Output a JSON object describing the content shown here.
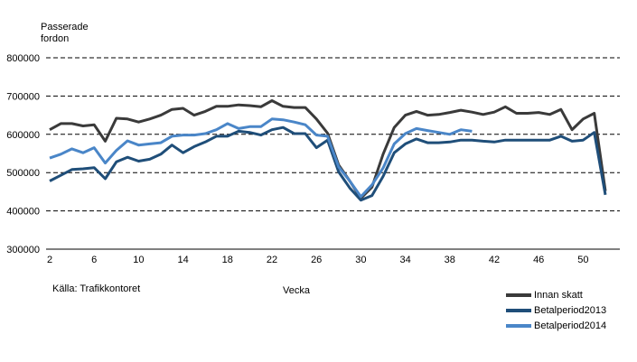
{
  "chart_data": {
    "type": "line",
    "ylabel_lines": [
      "Passerade",
      "fordon"
    ],
    "xlabel": "Vecka",
    "source": "Källa:  Trafikkontoret",
    "ylim": [
      300000,
      800000
    ],
    "yticks": [
      300000,
      400000,
      500000,
      600000,
      700000,
      800000
    ],
    "ytick_labels": [
      "300000",
      "400000",
      "500000",
      "600000",
      "700000",
      "800000"
    ],
    "xlim": [
      2,
      52
    ],
    "xticks": [
      2,
      6,
      10,
      14,
      18,
      22,
      26,
      30,
      34,
      38,
      42,
      46,
      50
    ],
    "xtick_labels": [
      "2",
      "6",
      "10",
      "14",
      "18",
      "22",
      "26",
      "30",
      "34",
      "38",
      "42",
      "46",
      "50"
    ],
    "grid": "horizontal-dashed",
    "legend_position": "bottom-right",
    "series": [
      {
        "name": "Innan skatt",
        "color": "#3a3a3a",
        "x": [
          2,
          3,
          4,
          5,
          6,
          7,
          8,
          9,
          10,
          11,
          12,
          13,
          14,
          15,
          16,
          17,
          18,
          19,
          20,
          21,
          22,
          23,
          24,
          25,
          26,
          27,
          28,
          29,
          30,
          31,
          32,
          33,
          34,
          35,
          36,
          37,
          38,
          39,
          40,
          41,
          42,
          43,
          44,
          45,
          46,
          47,
          48,
          49,
          50,
          51,
          52
        ],
        "values": [
          612000,
          628000,
          628000,
          622000,
          625000,
          582000,
          642000,
          640000,
          632000,
          640000,
          650000,
          665000,
          668000,
          650000,
          660000,
          673000,
          673000,
          677000,
          675000,
          672000,
          688000,
          673000,
          670000,
          670000,
          640000,
          603000,
          520000,
          478000,
          433000,
          462000,
          548000,
          618000,
          650000,
          660000,
          650000,
          652000,
          657000,
          663000,
          658000,
          652000,
          658000,
          672000,
          655000,
          655000,
          657000,
          652000,
          665000,
          612000,
          640000,
          655000,
          452000
        ]
      },
      {
        "name": "Betalperiod2013",
        "color": "#1f4e79",
        "x": [
          2,
          3,
          4,
          5,
          6,
          7,
          8,
          9,
          10,
          11,
          12,
          13,
          14,
          15,
          16,
          17,
          18,
          19,
          20,
          21,
          22,
          23,
          24,
          25,
          26,
          27,
          28,
          29,
          30,
          31,
          32,
          33,
          34,
          35,
          36,
          37,
          38,
          39,
          40,
          41,
          42,
          43,
          44,
          45,
          46,
          47,
          48,
          49,
          50,
          51,
          52
        ],
        "values": [
          478000,
          493000,
          508000,
          510000,
          513000,
          484000,
          528000,
          540000,
          530000,
          535000,
          548000,
          572000,
          552000,
          568000,
          580000,
          595000,
          595000,
          608000,
          605000,
          598000,
          612000,
          618000,
          602000,
          602000,
          565000,
          585000,
          502000,
          460000,
          428000,
          440000,
          490000,
          552000,
          575000,
          588000,
          578000,
          578000,
          580000,
          585000,
          585000,
          582000,
          580000,
          585000,
          585000,
          585000,
          585000,
          585000,
          595000,
          582000,
          585000,
          605000,
          442000
        ]
      },
      {
        "name": "Betalperiod2014",
        "color": "#4a86c8",
        "x": [
          2,
          3,
          4,
          5,
          6,
          7,
          8,
          9,
          10,
          11,
          12,
          13,
          14,
          15,
          16,
          17,
          18,
          19,
          20,
          21,
          22,
          23,
          24,
          25,
          26,
          27,
          28,
          29,
          30,
          31,
          32,
          33,
          34,
          35,
          36,
          37,
          38,
          39,
          40
        ],
        "values": [
          538000,
          548000,
          562000,
          552000,
          565000,
          525000,
          558000,
          583000,
          572000,
          575000,
          578000,
          595000,
          598000,
          598000,
          602000,
          612000,
          628000,
          615000,
          620000,
          620000,
          640000,
          638000,
          632000,
          625000,
          598000,
          595000,
          515000,
          478000,
          437000,
          468000,
          512000,
          575000,
          602000,
          615000,
          610000,
          605000,
          600000,
          612000,
          608000
        ]
      }
    ]
  }
}
